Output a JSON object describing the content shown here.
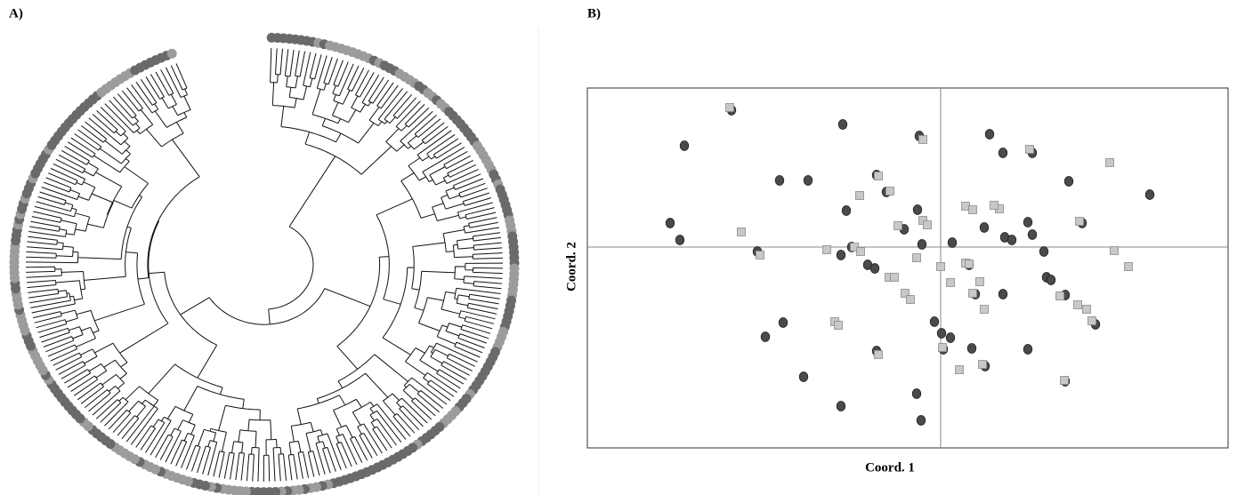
{
  "chart_data": [
    {
      "type": "dendrogram",
      "panel_label": "A)"
    },
    {
      "type": "scatter",
      "panel_label": "B)",
      "xlabel": "Coord. 1",
      "ylabel": "Coord. 2",
      "xlim": [
        -3.97,
        3.23
      ],
      "ylim": [
        -2.26,
        1.79
      ],
      "axis_lines_at": [
        0,
        0
      ],
      "series": [
        {
          "color": "#4a4a4a",
          "marker": "circle",
          "x": [
            -2.35,
            -1.1,
            -2.88,
            -0.24,
            0.55,
            0.7,
            1.03,
            -1.81,
            -1.49,
            1.44,
            2.35,
            -0.72,
            -0.61,
            -1.06,
            -0.26,
            -3.04,
            -2.93,
            -2.06,
            -1.12,
            -0.41,
            -0.21,
            0.13,
            0.49,
            0.72,
            0.8,
            0.98,
            1.03,
            1.16,
            1.59,
            -1.0,
            -0.82,
            -0.74,
            0.32,
            1.19,
            1.24,
            0.7,
            0.39,
            1.4,
            1.74,
            -0.07,
            0.01,
            0.11,
            -1.77,
            -1.97,
            -0.72,
            0.03,
            0.35,
            0.5,
            0.98,
            -1.54,
            1.4,
            -1.12,
            -0.27,
            -0.22
          ],
          "values": [
            1.54,
            1.38,
            1.14,
            1.25,
            1.27,
            1.06,
            1.06,
            0.75,
            0.75,
            0.74,
            0.59,
            0.81,
            0.62,
            0.41,
            0.42,
            0.27,
            0.08,
            -0.05,
            -0.09,
            0.2,
            0.03,
            0.05,
            0.22,
            0.11,
            0.08,
            0.28,
            0.14,
            -0.05,
            0.27,
            0.0,
            -0.2,
            -0.24,
            -0.2,
            -0.34,
            -0.37,
            -0.53,
            -0.53,
            -0.54,
            -0.87,
            -0.84,
            -0.97,
            -1.02,
            -0.85,
            -1.01,
            -1.17,
            -1.15,
            -1.14,
            -1.34,
            -1.15,
            -1.46,
            -1.51,
            -1.79,
            -1.65,
            -1.95
          ]
        },
        {
          "color": "#c8c8c8",
          "marker": "square",
          "x": [
            -2.37,
            -0.2,
            1.0,
            1.9,
            -0.7,
            -0.91,
            -0.57,
            -0.2,
            -0.15,
            -0.48,
            0.28,
            0.36,
            0.66,
            0.6,
            1.56,
            -2.24,
            -1.28,
            -2.03,
            -0.97,
            -0.9,
            -0.27,
            0.0,
            0.28,
            0.32,
            1.95,
            2.11,
            -0.58,
            -0.52,
            0.11,
            0.44,
            -0.4,
            -0.34,
            0.36,
            0.49,
            1.34,
            1.54,
            1.64,
            -1.19,
            -1.15,
            1.7,
            0.02,
            -0.7,
            0.21,
            0.47,
            1.39
          ],
          "values": [
            1.57,
            1.21,
            1.1,
            0.95,
            0.8,
            0.58,
            0.63,
            0.3,
            0.25,
            0.24,
            0.46,
            0.42,
            0.43,
            0.47,
            0.29,
            0.17,
            -0.03,
            -0.09,
            0.0,
            -0.05,
            -0.12,
            -0.22,
            -0.18,
            -0.19,
            -0.04,
            -0.22,
            -0.34,
            -0.34,
            -0.4,
            -0.39,
            -0.52,
            -0.59,
            -0.52,
            -0.7,
            -0.55,
            -0.65,
            -0.7,
            -0.84,
            -0.88,
            -0.83,
            -1.13,
            -1.21,
            -1.38,
            -1.32,
            -1.5
          ]
        }
      ]
    }
  ]
}
